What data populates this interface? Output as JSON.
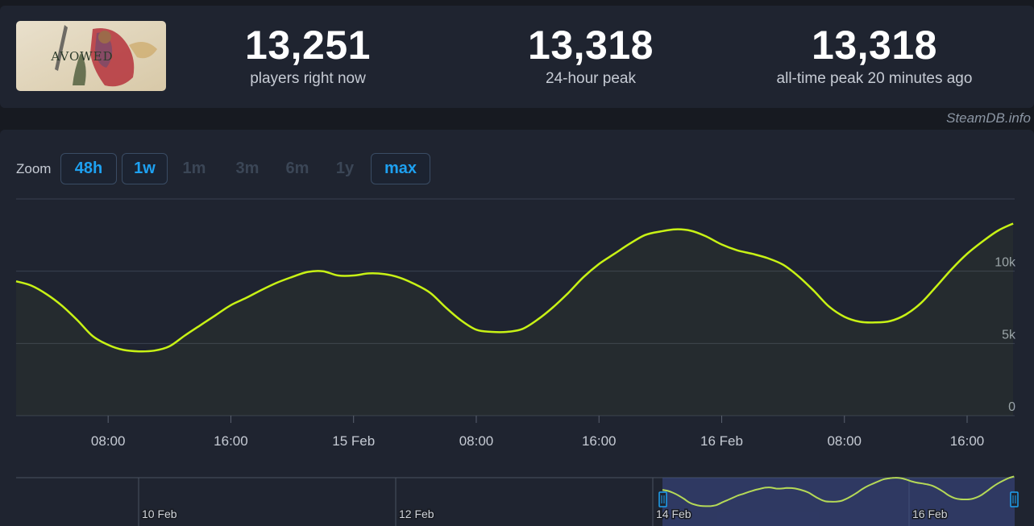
{
  "stats": {
    "current": {
      "value": "13,251",
      "label": "players right now"
    },
    "peak24": {
      "value": "13,318",
      "label": "24-hour peak"
    },
    "alltime": {
      "value": "13,318",
      "label": "all-time peak 20 minutes ago"
    }
  },
  "game_logo_text": "AVOWED",
  "watermark": "SteamDB.info",
  "zoom": {
    "label": "Zoom",
    "buttons": [
      {
        "label": "48h",
        "active": true
      },
      {
        "label": "1w",
        "active": true
      },
      {
        "label": "1m",
        "active": false
      },
      {
        "label": "3m",
        "active": false
      },
      {
        "label": "6m",
        "active": false
      },
      {
        "label": "1y",
        "active": false
      },
      {
        "label": "max",
        "active": true
      }
    ]
  },
  "colors": {
    "line": "#c8f215",
    "background": "#1f2430",
    "grid": "#3a4150",
    "accent": "#1ea1f1",
    "navigator_selection": "#3c4a8c"
  },
  "chart_data": {
    "type": "line",
    "title": "",
    "xlabel": "",
    "ylabel": "",
    "x_unit": "hours since 14 Feb 00:00",
    "ylim": [
      0,
      15000
    ],
    "y_ticks": [
      {
        "value": 0,
        "label": "0"
      },
      {
        "value": 5000,
        "label": "5k"
      },
      {
        "value": 10000,
        "label": "10k"
      }
    ],
    "x_ticks": [
      {
        "t": 8,
        "label": "08:00"
      },
      {
        "t": 16,
        "label": "16:00"
      },
      {
        "t": 24,
        "label": "15 Feb"
      },
      {
        "t": 32,
        "label": "08:00"
      },
      {
        "t": 40,
        "label": "16:00"
      },
      {
        "t": 48,
        "label": "16 Feb"
      },
      {
        "t": 56,
        "label": "08:00"
      },
      {
        "t": 64,
        "label": "16:00"
      }
    ],
    "xrange": [
      2,
      67.1
    ],
    "grid": true,
    "series": [
      {
        "x": [
          2,
          3,
          4,
          5,
          6,
          7,
          8,
          9,
          10,
          11,
          12,
          13,
          14,
          15,
          16,
          17,
          18,
          19,
          20,
          21,
          22,
          23,
          24,
          25,
          26,
          27,
          28,
          29,
          30,
          31,
          32,
          33,
          34,
          35,
          36,
          37,
          38,
          39,
          40,
          41,
          42,
          43,
          44,
          45,
          46,
          47,
          48,
          49,
          50,
          51,
          52,
          53,
          54,
          55,
          56,
          57,
          58,
          59,
          60,
          61,
          62,
          63,
          64,
          65,
          66,
          67
        ],
        "values": [
          9300,
          9000,
          8400,
          7600,
          6600,
          5500,
          4900,
          4550,
          4450,
          4500,
          4800,
          5550,
          6250,
          6950,
          7650,
          8150,
          8700,
          9200,
          9600,
          9950,
          10000,
          9700,
          9700,
          9850,
          9800,
          9550,
          9100,
          8500,
          7500,
          6600,
          5950,
          5800,
          5800,
          6000,
          6650,
          7500,
          8500,
          9600,
          10500,
          11200,
          11900,
          12500,
          12750,
          12900,
          12800,
          12400,
          11850,
          11450,
          11200,
          10900,
          10450,
          9650,
          8650,
          7550,
          6850,
          6500,
          6450,
          6550,
          7000,
          7800,
          8950,
          10150,
          11200,
          12050,
          12800,
          13300
        ]
      }
    ],
    "navigator": {
      "labels": [
        {
          "label": "10 Feb"
        },
        {
          "label": "12 Feb"
        },
        {
          "label": "14 Feb"
        },
        {
          "label": "16 Feb"
        }
      ]
    }
  }
}
